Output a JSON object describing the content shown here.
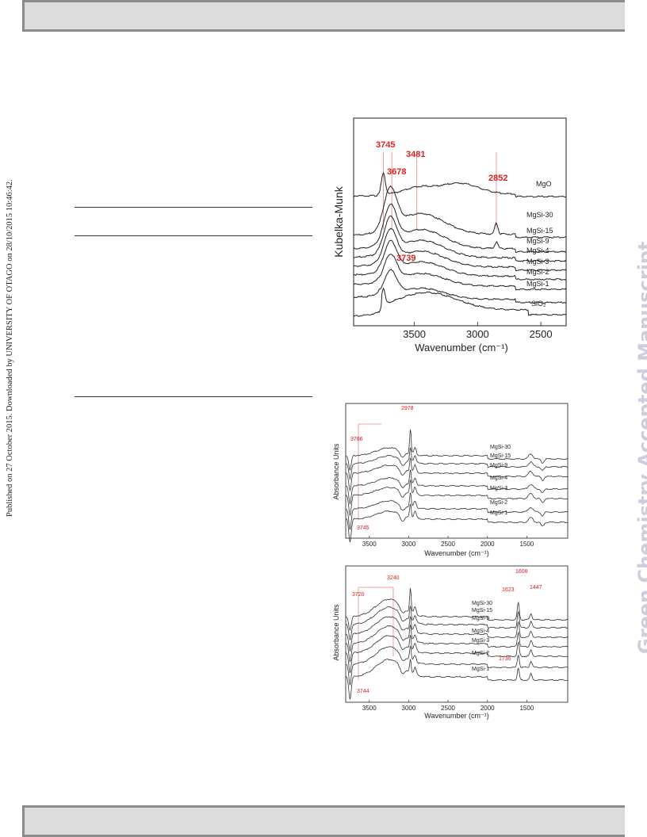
{
  "side_note": "Published on 27 October 2015. Downloaded by UNIVERSITY OF OTAGO on 28/10/2015 10:46:42.",
  "watermark": "Green Chemistry Accepted Manuscript",
  "chart_data": [
    {
      "type": "line",
      "ylabel": "Kubelka-Munk",
      "xlabel": "Wavenumber (cm⁻¹)",
      "x_ticks": [
        "3500",
        "3000",
        "2500"
      ],
      "xlim": [
        3980,
        2300
      ],
      "annotations": [
        "3745",
        "3678",
        "3481",
        "2852",
        "3739"
      ],
      "series": [
        {
          "name": "MgO"
        },
        {
          "name": "MgSi-30"
        },
        {
          "name": "MgSi-15"
        },
        {
          "name": "MgSi-9"
        },
        {
          "name": "MgSi-4"
        },
        {
          "name": "MgSi-3"
        },
        {
          "name": "MgSi-2"
        },
        {
          "name": "MgSi-1"
        },
        {
          "name": "SiO₂"
        }
      ]
    },
    {
      "type": "line",
      "ylabel": "Absorbance Units",
      "xlabel": "Wavenumber (cm⁻¹)",
      "x_ticks": [
        "3500",
        "3000",
        "2500",
        "2000",
        "1500"
      ],
      "xlim": [
        3800,
        980
      ],
      "annotations": [
        "2978",
        "3766",
        "3745"
      ],
      "series": [
        {
          "name": "MgSi-30"
        },
        {
          "name": "MgSi-15"
        },
        {
          "name": "MgSi-9"
        },
        {
          "name": "MgSi-4"
        },
        {
          "name": "MgSi-3"
        },
        {
          "name": "MgSi-2"
        },
        {
          "name": "MgSi-1"
        }
      ]
    },
    {
      "type": "line",
      "ylabel": "Absorbance Units",
      "xlabel": "Wavenumber (cm⁻¹)",
      "x_ticks": [
        "3500",
        "3000",
        "2500",
        "2000",
        "1500"
      ],
      "xlim": [
        3800,
        980
      ],
      "annotations": [
        "3240",
        "3720",
        "1608",
        "1623",
        "1447",
        "1736",
        "3744"
      ],
      "series": [
        {
          "name": "MgSi-30"
        },
        {
          "name": "MgSi-15"
        },
        {
          "name": "MgSi-9"
        },
        {
          "name": "MgSi-4"
        },
        {
          "name": "MgSi-3"
        },
        {
          "name": "MgSi-2"
        },
        {
          "name": "MgSi-1"
        }
      ]
    }
  ]
}
